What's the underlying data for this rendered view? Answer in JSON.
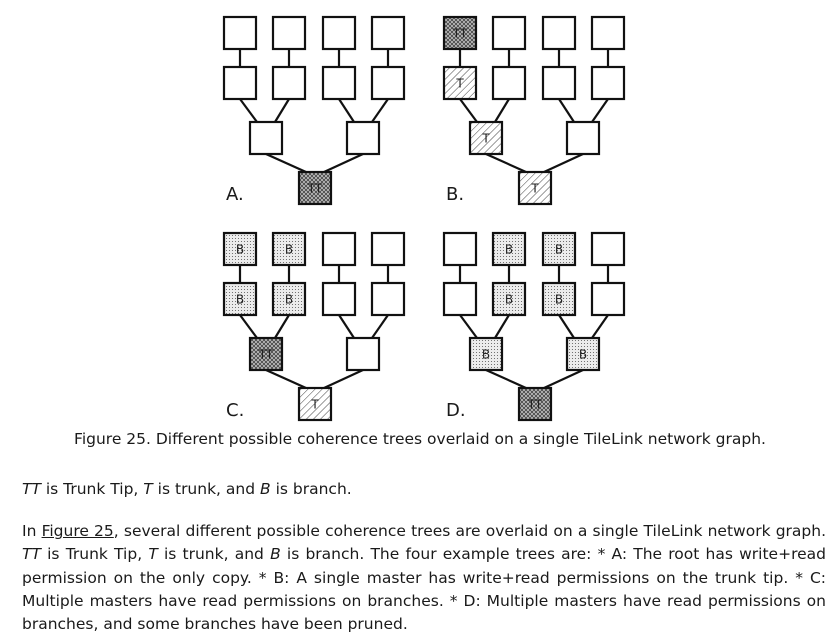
{
  "figure": {
    "panels": [
      {
        "letter": "A.",
        "tips": [
          "",
          "",
          "",
          "",
          "",
          "",
          "",
          ""
        ],
        "mids": [
          "",
          ""
        ],
        "root": "TT",
        "tip_fill": [
          "white",
          "white",
          "white",
          "white",
          "white",
          "white",
          "white",
          "white"
        ],
        "mid_fill": [
          "white",
          "white"
        ],
        "root_fill": "tt"
      },
      {
        "letter": "B.",
        "tips": [
          "TT",
          "",
          "",
          "",
          "T",
          "",
          "",
          ""
        ],
        "mids": [
          "T",
          ""
        ],
        "root": "T",
        "tip_fill": [
          "tt",
          "white",
          "white",
          "white",
          "hatch",
          "white",
          "white",
          "white"
        ],
        "mid_fill": [
          "hatch",
          "white"
        ],
        "root_fill": "hatch"
      },
      {
        "letter": "C.",
        "tips": [
          "B",
          "B",
          "",
          "",
          "B",
          "B",
          "",
          ""
        ],
        "mids": [
          "TT",
          ""
        ],
        "root": "T",
        "tip_fill": [
          "dots",
          "dots",
          "white",
          "white",
          "dots",
          "dots",
          "white",
          "white"
        ],
        "mid_fill": [
          "tt",
          "white"
        ],
        "root_fill": "hatch"
      },
      {
        "letter": "D.",
        "tips": [
          "",
          "B",
          "B",
          "",
          "",
          "B",
          "B",
          ""
        ],
        "mids": [
          "B",
          "B"
        ],
        "root": "TT",
        "tip_fill": [
          "white",
          "dots",
          "dots",
          "white",
          "white",
          "dots",
          "dots",
          "white"
        ],
        "mid_fill": [
          "dots",
          "dots"
        ],
        "root_fill": "tt"
      }
    ]
  },
  "caption": "Figure 25. Different possible coherence trees overlaid on a single TileLink network graph.",
  "legend": {
    "tt": "TT",
    "t1": " is Trunk Tip, ",
    "t": "T",
    "t2": " is trunk, and ",
    "b": "B",
    "t3": " is branch."
  },
  "paragraph": {
    "p1": "In ",
    "link": "Figure 25",
    "p2": ", several different possible coherence trees are overlaid on a single TileLink network graph. ",
    "tt": "TT",
    "p3": " is Trunk Tip, ",
    "t": "T",
    "p4": " is trunk, and ",
    "b": "B",
    "p5": " is branch. The four example trees are: * A: The root has write+read permission on the only copy. * B: A single master has write+read permissions on the trunk tip. * C: Multiple masters have read permissions on branches. * D: Multiple masters have read permissions on branches, and some branches have been pruned."
  }
}
